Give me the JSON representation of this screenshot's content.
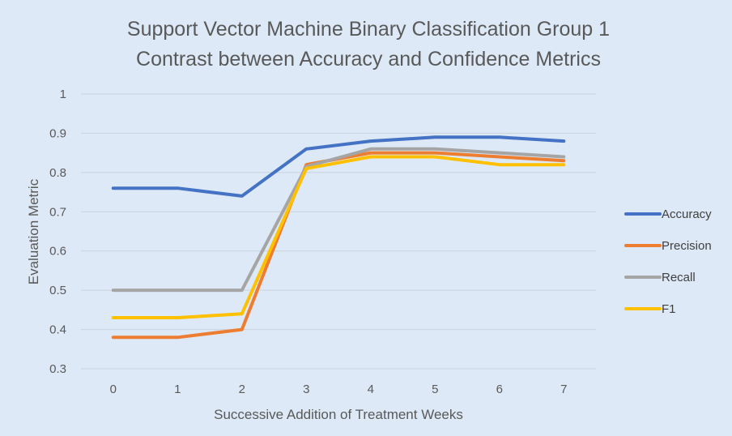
{
  "chart_data": {
    "type": "line",
    "title": "Support Vector Machine Binary Classification Group 1",
    "subtitle": "Contrast between Accuracy and Confidence Metrics",
    "xlabel": "Successive Addition of Treatment Weeks",
    "ylabel": "Evaluation Metric",
    "categories": [
      "0",
      "1",
      "2",
      "3",
      "4",
      "5",
      "6",
      "7"
    ],
    "ylim": [
      0.3,
      1.0
    ],
    "yticks": [
      "0.3",
      "0.4",
      "0.5",
      "0.6",
      "0.7",
      "0.8",
      "0.9",
      "1"
    ],
    "grid": true,
    "legend_position": "right",
    "series": [
      {
        "name": "Accuracy",
        "color": "#4472c4",
        "values": [
          0.76,
          0.76,
          0.74,
          0.86,
          0.88,
          0.89,
          0.89,
          0.88
        ]
      },
      {
        "name": "Precision",
        "color": "#ed7d31",
        "values": [
          0.38,
          0.38,
          0.4,
          0.82,
          0.85,
          0.85,
          0.84,
          0.83
        ]
      },
      {
        "name": "Recall",
        "color": "#a5a5a5",
        "values": [
          0.5,
          0.5,
          0.5,
          0.815,
          0.86,
          0.86,
          0.85,
          0.84
        ]
      },
      {
        "name": "F1",
        "color": "#ffc000",
        "values": [
          0.43,
          0.43,
          0.44,
          0.81,
          0.84,
          0.84,
          0.82,
          0.82
        ]
      }
    ]
  }
}
